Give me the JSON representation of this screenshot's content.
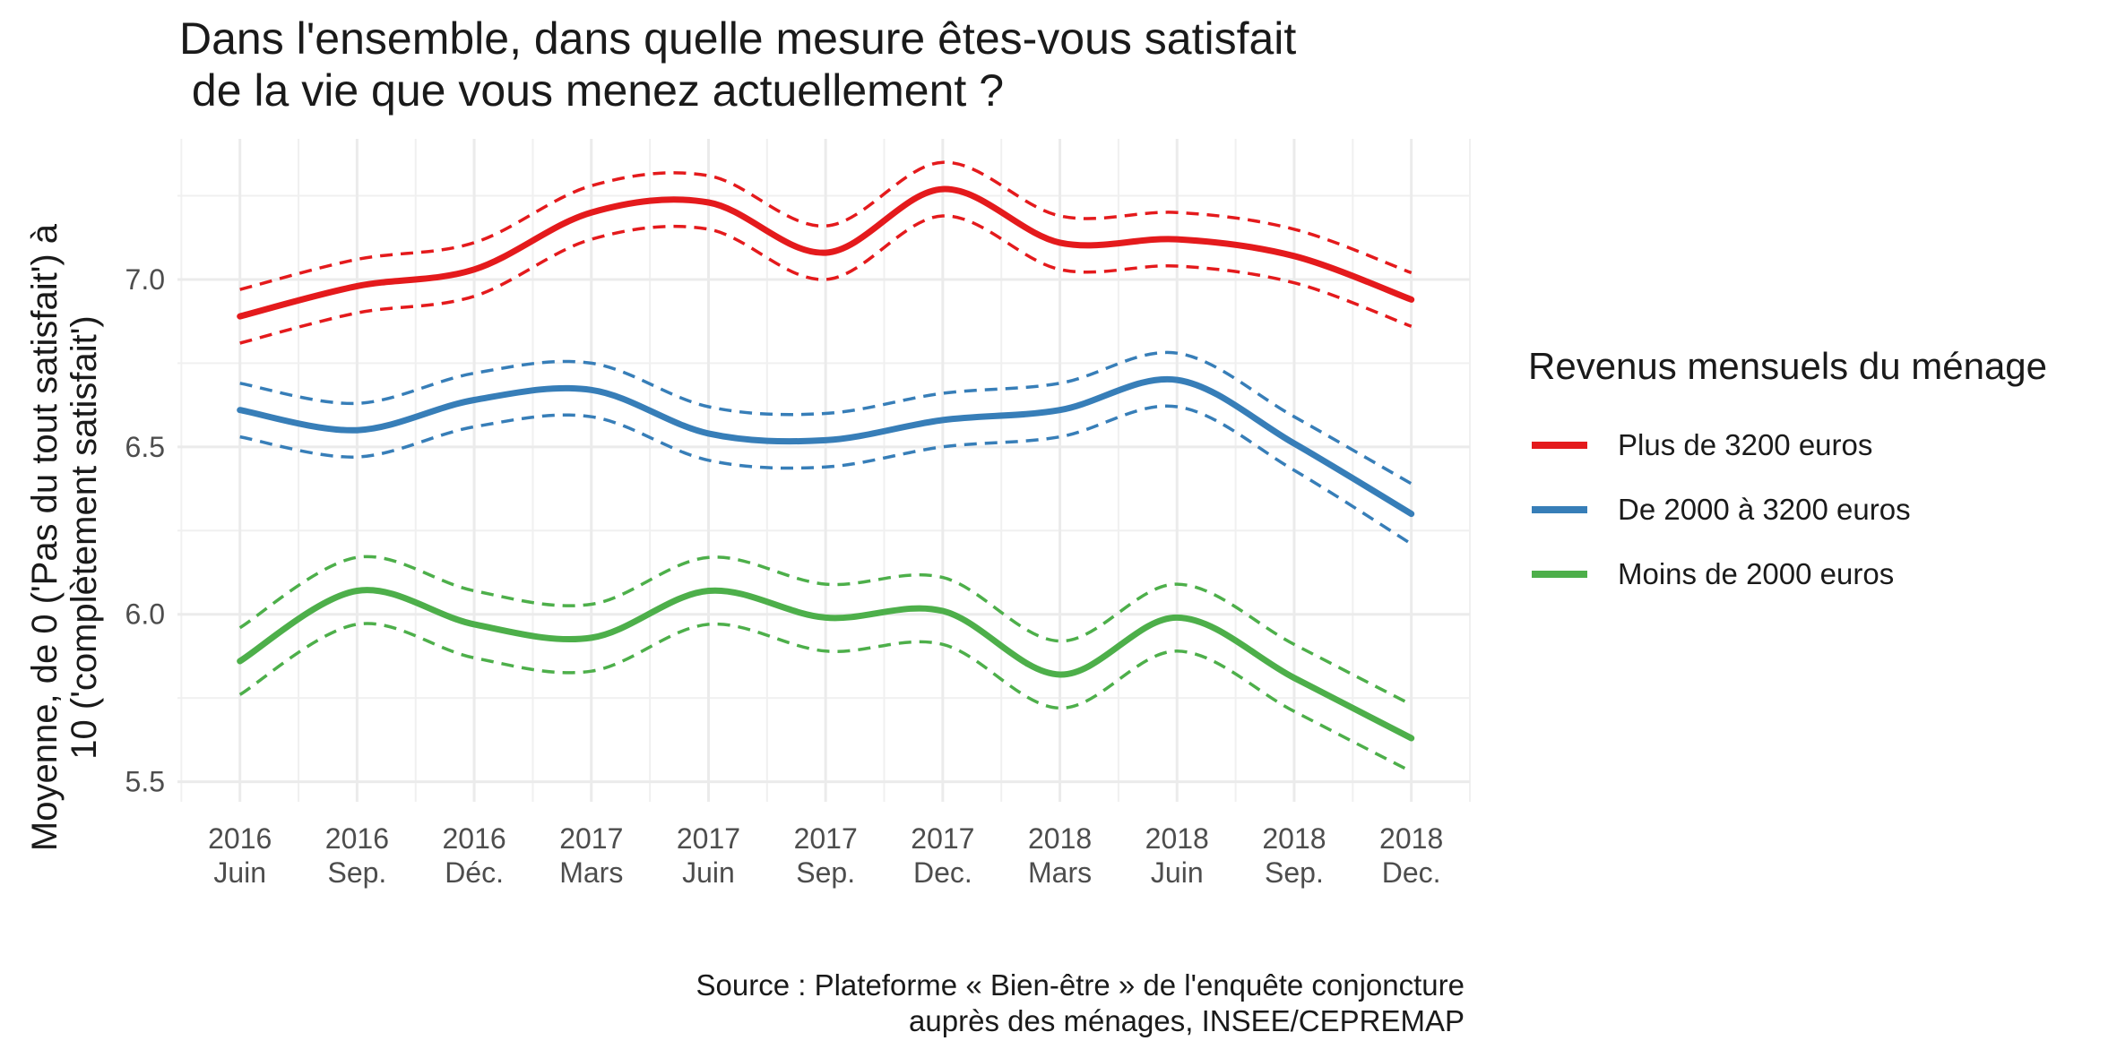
{
  "chart_data": {
    "type": "line",
    "title": "Dans l'ensemble, dans quelle mesure êtes-vous satisfait\n de la vie que vous menez actuellement ?",
    "xlabel": "",
    "ylabel": "Moyenne, de 0 ('Pas du tout satisfait') à\n10 ('complètement satisfait')",
    "caption": "Source : Plateforme « Bien-être » de l'enquête conjoncture\nauprès des ménages, INSEE/CEPREMAP",
    "x_ticks": [
      {
        "year": "2016",
        "month": "Juin"
      },
      {
        "year": "2016",
        "month": "Sep."
      },
      {
        "year": "2016",
        "month": "Déc."
      },
      {
        "year": "2017",
        "month": "Mars"
      },
      {
        "year": "2017",
        "month": "Juin"
      },
      {
        "year": "2017",
        "month": "Sep."
      },
      {
        "year": "2017",
        "month": "Dec."
      },
      {
        "year": "2018",
        "month": "Mars"
      },
      {
        "year": "2018",
        "month": "Juin"
      },
      {
        "year": "2018",
        "month": "Sep."
      },
      {
        "year": "2018",
        "month": "Dec."
      }
    ],
    "x_unit": "months since 2016 Juin (one tick every 3 months)",
    "y_ticks": [
      "5.5",
      "6.0",
      "6.5",
      "7.0"
    ],
    "ylim": [
      5.44,
      7.42
    ],
    "xlim": [
      -1.6,
      31.5
    ],
    "grid": true,
    "legend": {
      "title": "Revenus mensuels du ménage",
      "position": "right"
    },
    "series": [
      {
        "name": "Plus de 3200 euros",
        "color": "#E41A1C",
        "x": [
          0,
          3,
          6,
          9,
          12,
          15,
          18,
          21,
          24,
          27,
          30
        ],
        "values": [
          6.89,
          6.98,
          7.03,
          7.2,
          7.23,
          7.08,
          7.27,
          7.11,
          7.12,
          7.07,
          6.94
        ],
        "ci_low": [
          6.81,
          6.9,
          6.95,
          7.12,
          7.15,
          7.0,
          7.19,
          7.03,
          7.04,
          6.99,
          6.86
        ],
        "ci_high": [
          6.97,
          7.06,
          7.11,
          7.28,
          7.31,
          7.16,
          7.35,
          7.19,
          7.2,
          7.15,
          7.02
        ]
      },
      {
        "name": "De 2000 à 3200 euros",
        "color": "#377EB8",
        "x": [
          0,
          3,
          6,
          9,
          12,
          15,
          18,
          21,
          24,
          27,
          30
        ],
        "values": [
          6.61,
          6.55,
          6.64,
          6.67,
          6.54,
          6.52,
          6.58,
          6.61,
          6.7,
          6.51,
          6.3
        ],
        "ci_low": [
          6.53,
          6.47,
          6.56,
          6.59,
          6.46,
          6.44,
          6.5,
          6.53,
          6.62,
          6.43,
          6.21
        ],
        "ci_high": [
          6.69,
          6.63,
          6.72,
          6.75,
          6.62,
          6.6,
          6.66,
          6.69,
          6.78,
          6.59,
          6.39
        ]
      },
      {
        "name": "Moins de 2000 euros",
        "color": "#4DAF4A",
        "x": [
          0,
          3,
          6,
          9,
          12,
          15,
          18,
          21,
          24,
          27,
          30
        ],
        "values": [
          5.86,
          6.07,
          5.97,
          5.93,
          6.07,
          5.99,
          6.01,
          5.82,
          5.99,
          5.81,
          5.63
        ],
        "ci_low": [
          5.76,
          5.97,
          5.87,
          5.83,
          5.97,
          5.89,
          5.91,
          5.72,
          5.89,
          5.71,
          5.53
        ],
        "ci_high": [
          5.96,
          6.17,
          6.07,
          6.03,
          6.17,
          6.09,
          6.11,
          5.92,
          6.09,
          5.91,
          5.73
        ]
      }
    ]
  }
}
